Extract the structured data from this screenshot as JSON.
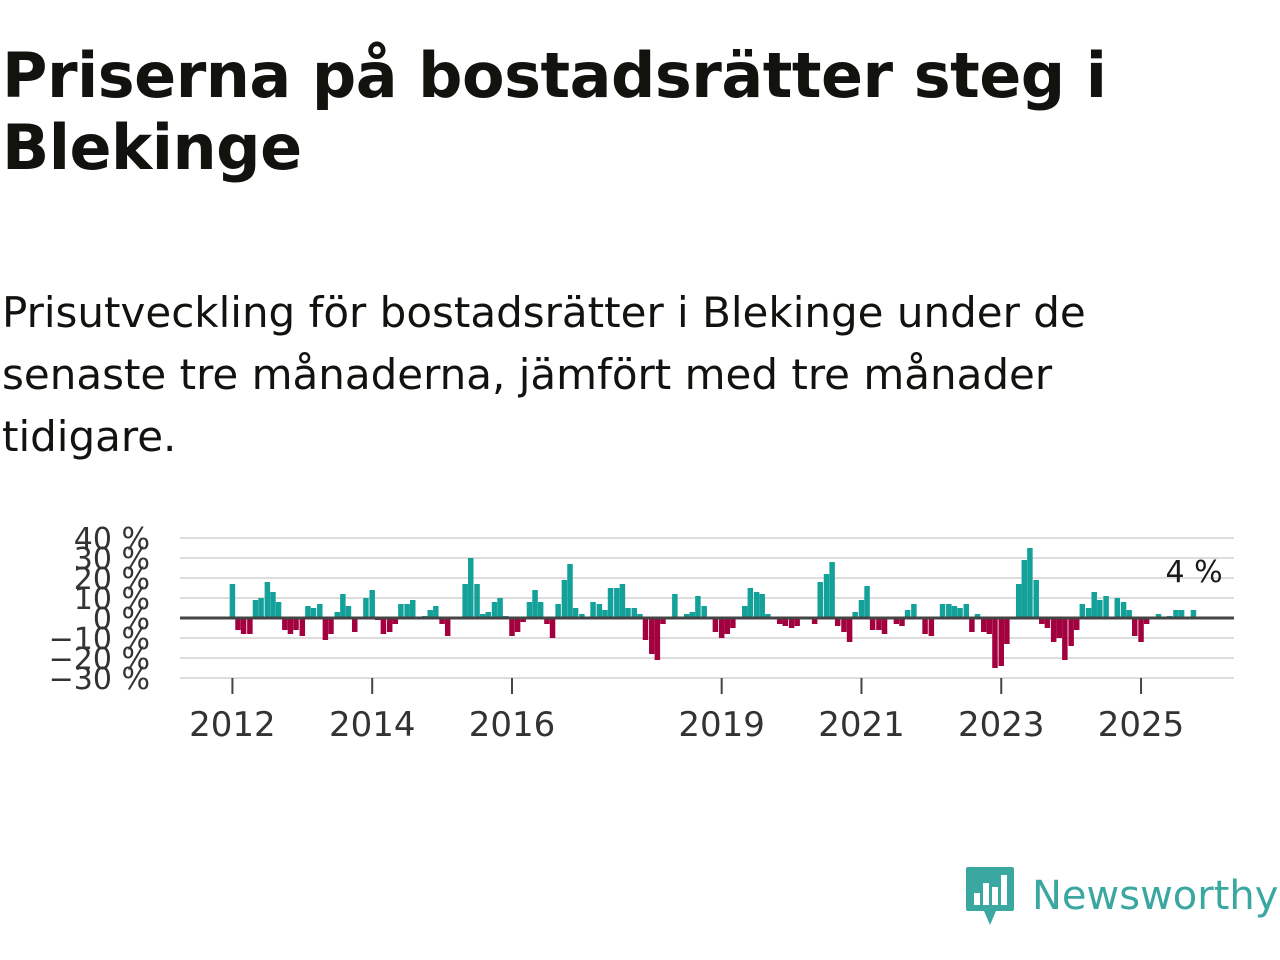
{
  "title": "Priserna på bostadsrätter steg i Blekinge",
  "subtitle": "Prisutveckling för bostadsrätter i Blekinge under de senaste tre månaderna, jämfört med tre månader tidigare.",
  "brand": {
    "name": "Newsworthy",
    "color": "#3aa8a0",
    "icon": "newsworthy-logo-icon"
  },
  "colors": {
    "positive": "#14a19a",
    "negative": "#a3003f",
    "grid": "#dddddd",
    "zero": "#444444"
  },
  "chart_data": {
    "type": "bar",
    "title": "Priserna på bostadsrätter steg i Blekinge",
    "ylabel": "",
    "xlabel": "",
    "ylim": [
      -30,
      40
    ],
    "y_ticks": [
      -30,
      -20,
      -10,
      0,
      10,
      20,
      30,
      40
    ],
    "y_tick_labels": [
      "−30 %",
      "−20 %",
      "−10 %",
      "0 %",
      "10 %",
      "20 %",
      "30 %",
      "40 %"
    ],
    "x_range": [
      2011.25,
      2026.33
    ],
    "x_ticks": [
      2012,
      2014,
      2016,
      2019,
      2021,
      2023,
      2025
    ],
    "x_tick_labels": [
      "2012",
      "2014",
      "2016",
      "2019",
      "2021",
      "2023",
      "2025"
    ],
    "series": [
      {
        "name": "Prisutveckling",
        "points": [
          [
            2012.0,
            17
          ],
          [
            2012.08,
            -6
          ],
          [
            2012.16,
            -8
          ],
          [
            2012.25,
            -8
          ],
          [
            2012.33,
            9
          ],
          [
            2012.41,
            10
          ],
          [
            2012.5,
            18
          ],
          [
            2012.58,
            13
          ],
          [
            2012.66,
            8
          ],
          [
            2012.75,
            -6
          ],
          [
            2012.83,
            -8
          ],
          [
            2012.91,
            -6
          ],
          [
            2013.0,
            -9
          ],
          [
            2013.08,
            6
          ],
          [
            2013.16,
            5
          ],
          [
            2013.25,
            7
          ],
          [
            2013.33,
            -11
          ],
          [
            2013.41,
            -8
          ],
          [
            2013.5,
            3
          ],
          [
            2013.58,
            12
          ],
          [
            2013.66,
            6
          ],
          [
            2013.75,
            -7
          ],
          [
            2013.91,
            10
          ],
          [
            2014.0,
            14
          ],
          [
            2014.08,
            -1
          ],
          [
            2014.16,
            -8
          ],
          [
            2014.25,
            -7
          ],
          [
            2014.33,
            -3
          ],
          [
            2014.41,
            7
          ],
          [
            2014.5,
            7
          ],
          [
            2014.58,
            9
          ],
          [
            2014.75,
            1
          ],
          [
            2014.83,
            4
          ],
          [
            2014.91,
            6
          ],
          [
            2015.0,
            -3
          ],
          [
            2015.08,
            -9
          ],
          [
            2015.33,
            17
          ],
          [
            2015.41,
            30
          ],
          [
            2015.5,
            17
          ],
          [
            2015.58,
            2
          ],
          [
            2015.66,
            3
          ],
          [
            2015.75,
            8
          ],
          [
            2015.83,
            10
          ],
          [
            2015.91,
            1
          ],
          [
            2016.0,
            -9
          ],
          [
            2016.08,
            -7
          ],
          [
            2016.16,
            -2
          ],
          [
            2016.25,
            8
          ],
          [
            2016.33,
            14
          ],
          [
            2016.41,
            8
          ],
          [
            2016.5,
            -3
          ],
          [
            2016.58,
            -10
          ],
          [
            2016.66,
            7
          ],
          [
            2016.75,
            19
          ],
          [
            2016.83,
            27
          ],
          [
            2016.91,
            5
          ],
          [
            2017.0,
            2
          ],
          [
            2017.16,
            8
          ],
          [
            2017.25,
            7
          ],
          [
            2017.33,
            4
          ],
          [
            2017.41,
            15
          ],
          [
            2017.5,
            15
          ],
          [
            2017.58,
            17
          ],
          [
            2017.66,
            5
          ],
          [
            2017.75,
            5
          ],
          [
            2017.83,
            2
          ],
          [
            2017.91,
            -11
          ],
          [
            2018.0,
            -18
          ],
          [
            2018.08,
            -21
          ],
          [
            2018.16,
            -3
          ],
          [
            2018.33,
            12
          ],
          [
            2018.5,
            2
          ],
          [
            2018.58,
            3
          ],
          [
            2018.66,
            11
          ],
          [
            2018.75,
            6
          ],
          [
            2018.91,
            -7
          ],
          [
            2019.0,
            -10
          ],
          [
            2019.08,
            -8
          ],
          [
            2019.16,
            -5
          ],
          [
            2019.33,
            6
          ],
          [
            2019.41,
            15
          ],
          [
            2019.5,
            13
          ],
          [
            2019.58,
            12
          ],
          [
            2019.66,
            2
          ],
          [
            2019.83,
            -3
          ],
          [
            2019.91,
            -4
          ],
          [
            2020.0,
            -5
          ],
          [
            2020.08,
            -4
          ],
          [
            2020.33,
            -3
          ],
          [
            2020.41,
            18
          ],
          [
            2020.5,
            22
          ],
          [
            2020.58,
            28
          ],
          [
            2020.66,
            -4
          ],
          [
            2020.75,
            -7
          ],
          [
            2020.83,
            -12
          ],
          [
            2020.91,
            3
          ],
          [
            2021.0,
            9
          ],
          [
            2021.08,
            16
          ],
          [
            2021.16,
            -6
          ],
          [
            2021.25,
            -6
          ],
          [
            2021.33,
            -8
          ],
          [
            2021.5,
            -3
          ],
          [
            2021.58,
            -4
          ],
          [
            2021.66,
            4
          ],
          [
            2021.75,
            7
          ],
          [
            2021.91,
            -8
          ],
          [
            2022.0,
            -9
          ],
          [
            2022.16,
            7
          ],
          [
            2022.25,
            7
          ],
          [
            2022.33,
            6
          ],
          [
            2022.41,
            5
          ],
          [
            2022.5,
            7
          ],
          [
            2022.58,
            -7
          ],
          [
            2022.66,
            2
          ],
          [
            2022.75,
            -7
          ],
          [
            2022.83,
            -8
          ],
          [
            2022.91,
            -25
          ],
          [
            2023.0,
            -24
          ],
          [
            2023.08,
            -13
          ],
          [
            2023.25,
            17
          ],
          [
            2023.33,
            29
          ],
          [
            2023.41,
            35
          ],
          [
            2023.5,
            19
          ],
          [
            2023.58,
            -3
          ],
          [
            2023.66,
            -5
          ],
          [
            2023.75,
            -12
          ],
          [
            2023.83,
            -10
          ],
          [
            2023.91,
            -21
          ],
          [
            2024.0,
            -14
          ],
          [
            2024.08,
            -6
          ],
          [
            2024.16,
            7
          ],
          [
            2024.25,
            5
          ],
          [
            2024.33,
            13
          ],
          [
            2024.41,
            9
          ],
          [
            2024.5,
            11
          ],
          [
            2024.66,
            10
          ],
          [
            2024.75,
            8
          ],
          [
            2024.83,
            4
          ],
          [
            2024.91,
            -9
          ],
          [
            2025.0,
            -12
          ],
          [
            2025.08,
            -3
          ],
          [
            2025.25,
            2
          ],
          [
            2025.41,
            1
          ],
          [
            2025.5,
            4
          ],
          [
            2025.58,
            4
          ],
          [
            2025.75,
            4
          ]
        ]
      }
    ],
    "annotation": {
      "label": "4 %",
      "x": 2025.75,
      "value": 4
    }
  }
}
